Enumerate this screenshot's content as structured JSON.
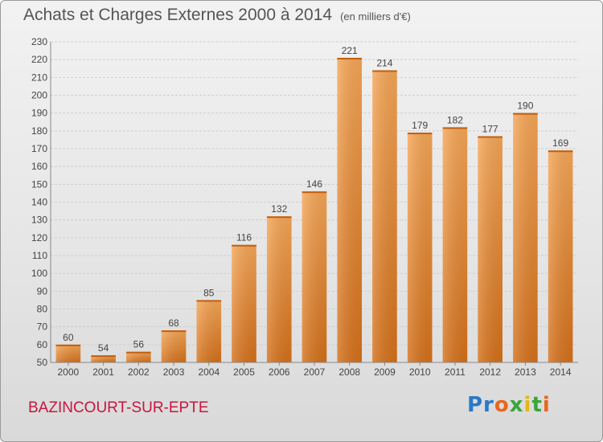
{
  "header": {
    "title": "Achats et Charges Externes 2000 à 2014",
    "unit": "(en milliers d'€)"
  },
  "footer": {
    "location": "BAZINCOURT-SUR-EPTE",
    "logo_text": "Proxiti"
  },
  "colors": {
    "bar_top": "#f5a657",
    "bar_bottom": "#d4701a",
    "location": "#c8153f"
  },
  "chart_data": {
    "type": "bar",
    "title": "Achats et Charges Externes 2000 à 2014",
    "subtitle": "(en milliers d'€)",
    "categories": [
      "2000",
      "2001",
      "2002",
      "2003",
      "2004",
      "2005",
      "2006",
      "2007",
      "2008",
      "2009",
      "2010",
      "2011",
      "2012",
      "2013",
      "2014"
    ],
    "values": [
      60,
      54,
      56,
      68,
      85,
      116,
      132,
      146,
      221,
      214,
      179,
      182,
      177,
      190,
      169
    ],
    "ylim": [
      50,
      230
    ],
    "yticks": [
      50,
      60,
      70,
      80,
      90,
      100,
      110,
      120,
      130,
      140,
      150,
      160,
      170,
      180,
      190,
      200,
      210,
      220,
      230
    ],
    "grid": true,
    "data_labels": true
  }
}
